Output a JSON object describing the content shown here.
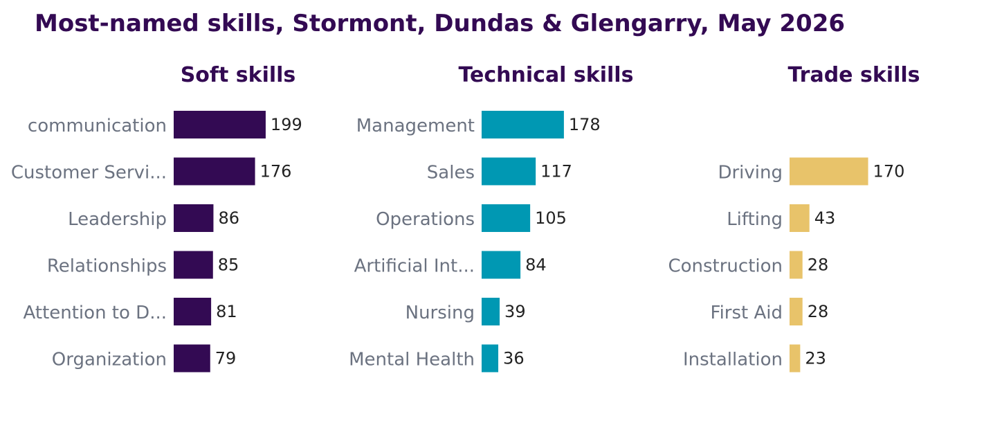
{
  "title": "Most-named skills, Stormont, Dundas & Glengarry, May 2026",
  "colors": {
    "title": "#330a53",
    "category_label": "#6b7280",
    "value_label": "#222222",
    "soft": "#330a53",
    "technical": "#0098b3",
    "trade": "#e8c36a"
  },
  "chart_data": [
    {
      "type": "bar",
      "orientation": "horizontal",
      "title": "Soft skills",
      "categories": [
        "communication",
        "Customer Servi...",
        "Leadership",
        "Relationships",
        "Attention to D...",
        "Organization"
      ],
      "values": [
        199,
        176,
        86,
        85,
        81,
        79
      ],
      "color": "#330a53",
      "grid": false
    },
    {
      "type": "bar",
      "orientation": "horizontal",
      "title": "Technical skills",
      "categories": [
        "Management",
        "Sales",
        "Operations",
        "Artificial Int...",
        "Nursing",
        "Mental Health"
      ],
      "values": [
        178,
        117,
        105,
        84,
        39,
        36
      ],
      "color": "#0098b3",
      "grid": false
    },
    {
      "type": "bar",
      "orientation": "horizontal",
      "title": "Trade skills",
      "categories": [
        "",
        "Driving",
        "Lifting",
        "Construction",
        "First Aid",
        "Installation"
      ],
      "values": [
        null,
        170,
        43,
        28,
        28,
        23
      ],
      "color": "#e8c36a",
      "grid": false
    }
  ]
}
